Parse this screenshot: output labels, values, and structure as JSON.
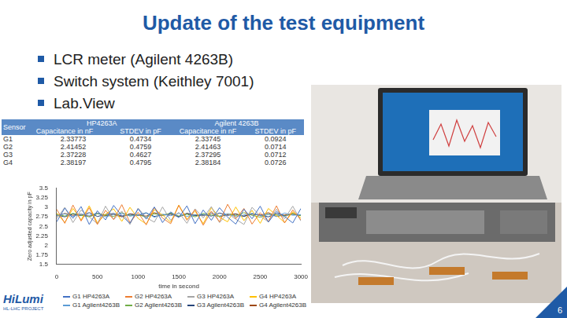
{
  "header": {
    "title": "Update of the test equipment"
  },
  "bullets": [
    "LCR meter (Agilent 4263B)",
    "Switch system (Keithley 7001)",
    "Lab.View"
  ],
  "table": {
    "header_top": [
      "Sensor",
      "HP4263A",
      "Agilent 4263B"
    ],
    "header_sub": [
      "Capacitance in nF",
      "STDEV in pF",
      "Capacitance in nF",
      "STDEV in pF"
    ],
    "rows": [
      [
        "G1",
        "2.33773",
        "0.4734",
        "2.33745",
        "0.0924"
      ],
      [
        "G2",
        "2.41452",
        "0.4759",
        "2.41463",
        "0.0714"
      ],
      [
        "G3",
        "2.37228",
        "0.4627",
        "2.37295",
        "0.0712"
      ],
      [
        "G4",
        "2.38197",
        "0.4795",
        "2.38184",
        "0.0726"
      ]
    ]
  },
  "chart_data": {
    "type": "line",
    "xlabel": "time in second",
    "ylabel": "Zero adjusted capacity in pF",
    "x": [
      0,
      100,
      200,
      300,
      400,
      500,
      600,
      700,
      800,
      900,
      1000,
      1100,
      1200,
      1300,
      1400,
      1500,
      1600,
      1700,
      1800,
      1900,
      2000,
      2100,
      2200,
      2300,
      2400,
      2500,
      2600,
      2700,
      2800,
      2900,
      3000
    ],
    "xlim": [
      0,
      3000
    ],
    "xticks": [
      0,
      500,
      1000,
      1500,
      2000,
      2500,
      3000
    ],
    "ylim": [
      1.5,
      3.5
    ],
    "yticks": [
      1.5,
      1.75,
      2,
      2.25,
      2.5,
      2.75,
      3,
      3.25,
      3.5
    ],
    "grid": false,
    "legend": "bottom",
    "series": [
      {
        "name": "G1 HP4263A",
        "color": "#4472c4",
        "values": [
          2.62,
          2.98,
          2.71,
          3.02,
          2.55,
          2.91,
          2.67,
          3.05,
          2.78,
          2.58,
          2.96,
          2.69,
          3.01,
          2.6,
          2.88,
          2.73,
          3.04,
          2.57,
          2.93,
          2.66,
          2.99,
          2.74,
          2.56,
          2.95,
          2.7,
          3.03,
          2.61,
          2.89,
          2.76,
          2.59,
          2.97
        ]
      },
      {
        "name": "G2 HP4263A",
        "color": "#ed7d31",
        "values": [
          2.95,
          2.58,
          3.06,
          2.64,
          2.99,
          2.55,
          2.92,
          2.68,
          3.07,
          2.6,
          2.87,
          2.54,
          3.0,
          2.72,
          2.57,
          3.05,
          2.66,
          2.94,
          2.53,
          2.9,
          2.62,
          3.08,
          2.7,
          2.97,
          2.56,
          2.86,
          2.63,
          3.04,
          2.59,
          2.93,
          2.67
        ]
      },
      {
        "name": "G3 HP4263A",
        "color": "#a5a5a5",
        "values": [
          2.7,
          3.0,
          2.6,
          2.93,
          2.75,
          2.57,
          3.03,
          2.68,
          2.9,
          2.55,
          2.98,
          2.73,
          2.61,
          3.01,
          2.66,
          2.87,
          2.58,
          2.96,
          2.72,
          3.02,
          2.6,
          2.84,
          2.69,
          2.55,
          3.0,
          2.77,
          2.62,
          2.95,
          2.7,
          3.03,
          2.64
        ]
      },
      {
        "name": "G4 HP4263A",
        "color": "#ffc000",
        "values": [
          2.85,
          2.6,
          2.97,
          2.67,
          3.04,
          2.59,
          2.82,
          2.96,
          2.63,
          3.0,
          2.71,
          2.56,
          2.94,
          2.8,
          2.61,
          3.06,
          2.69,
          2.9,
          2.57,
          2.99,
          2.74,
          2.62,
          3.01,
          2.65,
          2.92,
          2.58,
          2.97,
          2.79,
          2.6,
          2.88,
          2.72
        ]
      },
      {
        "name": "G1 Agilent4263B",
        "color": "#5b9bd5",
        "values": [
          2.78,
          2.83,
          2.76,
          2.82,
          2.79,
          2.85,
          2.75,
          2.81,
          2.84,
          2.77,
          2.8,
          2.86,
          2.74,
          2.82,
          2.78,
          2.84,
          2.76,
          2.81,
          2.79,
          2.85,
          2.77,
          2.83,
          2.75,
          2.8,
          2.84,
          2.78,
          2.82,
          2.76,
          2.85,
          2.79,
          2.81
        ]
      },
      {
        "name": "G2 Agilent4263B",
        "color": "#70ad47",
        "values": [
          2.82,
          2.77,
          2.84,
          2.79,
          2.75,
          2.83,
          2.8,
          2.76,
          2.86,
          2.78,
          2.81,
          2.74,
          2.83,
          2.79,
          2.85,
          2.77,
          2.82,
          2.75,
          2.84,
          2.8,
          2.76,
          2.83,
          2.78,
          2.86,
          2.79,
          2.74,
          2.82,
          2.8,
          2.77,
          2.84,
          2.78
        ]
      },
      {
        "name": "G3 Agilent4263B",
        "color": "#264478",
        "values": [
          2.8,
          2.75,
          2.83,
          2.78,
          2.86,
          2.76,
          2.81,
          2.84,
          2.77,
          2.82,
          2.79,
          2.85,
          2.76,
          2.8,
          2.83,
          2.75,
          2.84,
          2.78,
          2.81,
          2.77,
          2.85,
          2.79,
          2.82,
          2.76,
          2.83,
          2.8,
          2.75,
          2.84,
          2.78,
          2.82,
          2.79
        ]
      },
      {
        "name": "G4 Agilent4263B",
        "color": "#9e480e",
        "values": [
          2.77,
          2.84,
          2.79,
          2.82,
          2.76,
          2.85,
          2.78,
          2.81,
          2.75,
          2.83,
          2.8,
          2.77,
          2.86,
          2.79,
          2.82,
          2.76,
          2.84,
          2.8,
          2.78,
          2.85,
          2.75,
          2.81,
          2.83,
          2.77,
          2.82,
          2.79,
          2.86,
          2.76,
          2.8,
          2.83,
          2.78
        ]
      }
    ]
  },
  "footer": {
    "logo": [
      "HiLumi",
      "HL-LHC PROJECT"
    ],
    "page": "6"
  }
}
